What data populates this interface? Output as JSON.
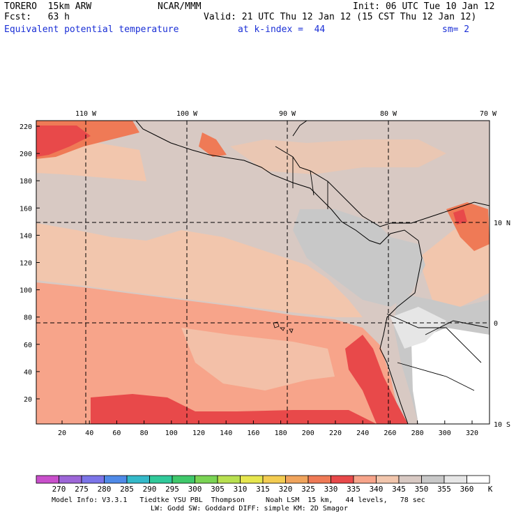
{
  "header": {
    "model": "TORERO  15km ARW",
    "org": "NCAR/MMM",
    "init": "Init: 06 UTC Tue 10 Jan 12",
    "fcst": "Fcst:   63 h",
    "valid": "Valid: 21 UTC Thu 12 Jan 12 (15 CST Thu 12 Jan 12)",
    "field": "Equivalent potential temperature",
    "level": "at k-index =  44",
    "smooth": "sm= 2"
  },
  "map": {
    "lon_labels": [
      "110 W",
      "100 W",
      "90 W",
      "80 W",
      "70 W"
    ],
    "lat_labels": [
      "10 N",
      "0",
      "10 S"
    ],
    "y_ticks": [
      "220",
      "200",
      "180",
      "160",
      "140",
      "120",
      "100",
      "80",
      "60",
      "40",
      "20"
    ],
    "x_ticks": [
      "20",
      "40",
      "60",
      "80",
      "100",
      "120",
      "140",
      "160",
      "180",
      "200",
      "220",
      "240",
      "260",
      "280",
      "300",
      "320"
    ]
  },
  "colorbar": {
    "labels": [
      "270",
      "275",
      "280",
      "285",
      "290",
      "295",
      "300",
      "305",
      "310",
      "315",
      "320",
      "325",
      "330",
      "335",
      "340",
      "345",
      "350",
      "355",
      "360"
    ],
    "unit": "K",
    "colors": [
      "#c94fcb",
      "#9d66d8",
      "#7b74e8",
      "#4f8ae8",
      "#34b9c9",
      "#30c99a",
      "#3fc86b",
      "#7ad454",
      "#b8e050",
      "#e6e64e",
      "#f3cc51",
      "#f0a45c",
      "#ef7a56",
      "#e8494a",
      "#f7a48a",
      "#f2c6ad",
      "#d8c9c3",
      "#c8c8c8",
      "#e6e6e6",
      "#ffffff"
    ]
  },
  "footer": {
    "line1": "Model Info: V3.3.1   Tiedtke YSU PBL  Thompson     Noah LSM  15 km,   44 levels,   78 sec",
    "line2": "LW: Godd SW: Goddard DIFF: simple KM: 2D Smagor"
  }
}
